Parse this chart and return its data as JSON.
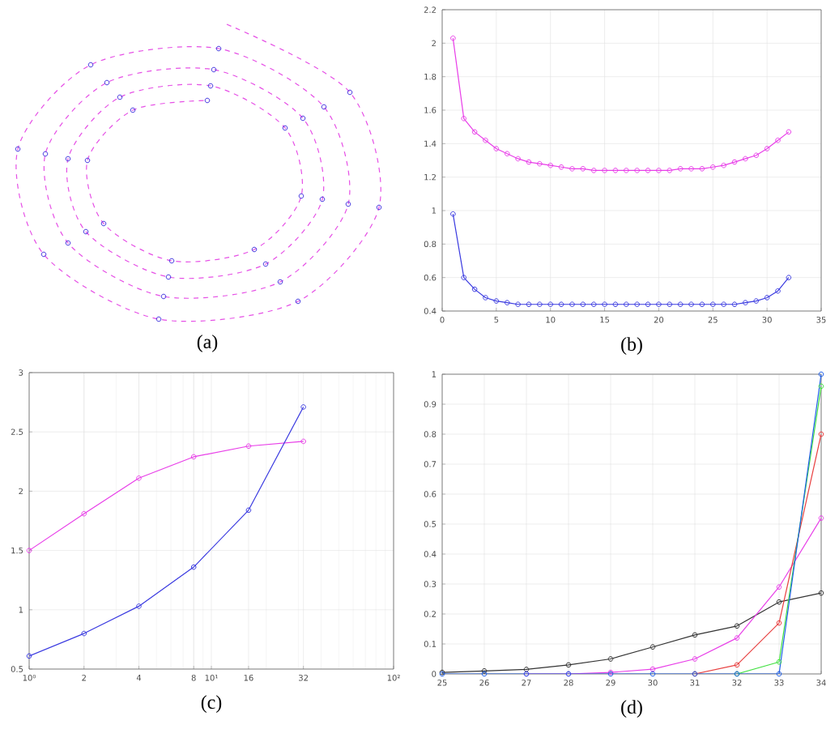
{
  "chart_data": [
    {
      "type": "other",
      "xlabel": "(a)"
    },
    {
      "type": "line",
      "xlabel": "(b)",
      "grid": true,
      "marker": "circle",
      "xlim": [
        0,
        35
      ],
      "ylim": [
        0.4,
        2.2
      ],
      "xticks": [
        0,
        5,
        10,
        15,
        20,
        25,
        30,
        35
      ],
      "yticks": [
        0.4,
        0.6,
        0.8,
        1,
        1.2,
        1.4,
        1.6,
        1.8,
        2,
        2.2
      ],
      "x": [
        1,
        2,
        3,
        4,
        5,
        6,
        7,
        8,
        9,
        10,
        11,
        12,
        13,
        14,
        15,
        16,
        17,
        18,
        19,
        20,
        21,
        22,
        23,
        24,
        25,
        26,
        27,
        28,
        29,
        30,
        31,
        32
      ],
      "series": [
        {
          "color": "#e83ee8",
          "values": [
            2.03,
            1.55,
            1.47,
            1.42,
            1.37,
            1.34,
            1.31,
            1.29,
            1.28,
            1.27,
            1.26,
            1.25,
            1.25,
            1.24,
            1.24,
            1.24,
            1.24,
            1.24,
            1.24,
            1.24,
            1.24,
            1.25,
            1.25,
            1.25,
            1.26,
            1.27,
            1.29,
            1.31,
            1.33,
            1.37,
            1.42,
            1.47
          ]
        },
        {
          "color": "#3a3ae0",
          "values": [
            0.98,
            0.6,
            0.53,
            0.48,
            0.46,
            0.45,
            0.44,
            0.44,
            0.44,
            0.44,
            0.44,
            0.44,
            0.44,
            0.44,
            0.44,
            0.44,
            0.44,
            0.44,
            0.44,
            0.44,
            0.44,
            0.44,
            0.44,
            0.44,
            0.44,
            0.44,
            0.44,
            0.45,
            0.46,
            0.48,
            0.52,
            0.6
          ]
        }
      ]
    },
    {
      "type": "line",
      "xlabel": "(c)",
      "grid": true,
      "log": "x",
      "marker": "circle",
      "xlim": [
        1,
        100
      ],
      "ylim": [
        0.5,
        3
      ],
      "xticks": [
        {
          "value": 1,
          "label": "10⁰"
        },
        2,
        4,
        8,
        {
          "value": 10,
          "label": "10¹"
        },
        16,
        32,
        {
          "value": 100,
          "label": "10²"
        }
      ],
      "yticks": [
        0.5,
        1,
        1.5,
        2,
        2.5,
        3
      ],
      "x": [
        1,
        2,
        4,
        8,
        16,
        32
      ],
      "series": [
        {
          "color": "#e83ee8",
          "values": [
            1.5,
            1.81,
            2.11,
            2.29,
            2.38,
            2.42
          ]
        },
        {
          "color": "#3a3ae0",
          "values": [
            0.61,
            0.8,
            1.03,
            1.36,
            1.84,
            2.71
          ]
        }
      ]
    },
    {
      "type": "line",
      "xlabel": "(d)",
      "grid": true,
      "marker": "circle",
      "xlim": [
        25,
        34
      ],
      "ylim": [
        0,
        1
      ],
      "xticks": [
        25,
        26,
        27,
        28,
        29,
        30,
        31,
        32,
        33,
        34
      ],
      "yticks": [
        0,
        0.1,
        0.2,
        0.3,
        0.4,
        0.5,
        0.6,
        0.7,
        0.8,
        0.9,
        1
      ],
      "x": [
        25,
        26,
        27,
        28,
        29,
        30,
        31,
        32,
        33,
        34
      ],
      "series": [
        {
          "color": "#333333",
          "values": [
            0.005,
            0.01,
            0.015,
            0.03,
            0.05,
            0.09,
            0.13,
            0.16,
            0.24,
            0.27
          ]
        },
        {
          "color": "#e83ee8",
          "values": [
            null,
            null,
            0,
            0,
            0.005,
            0.016,
            0.05,
            0.12,
            0.29,
            0.52
          ]
        },
        {
          "color": "#e84040",
          "values": [
            null,
            null,
            null,
            null,
            null,
            null,
            0,
            0.03,
            0.17,
            0.8
          ]
        },
        {
          "color": "#40e040",
          "values": [
            null,
            null,
            null,
            null,
            null,
            null,
            null,
            0,
            0.04,
            0.96
          ]
        },
        {
          "color": "#2060e8",
          "values": [
            0,
            0,
            0,
            0,
            0,
            0,
            0,
            0,
            0,
            1
          ]
        }
      ]
    }
  ]
}
